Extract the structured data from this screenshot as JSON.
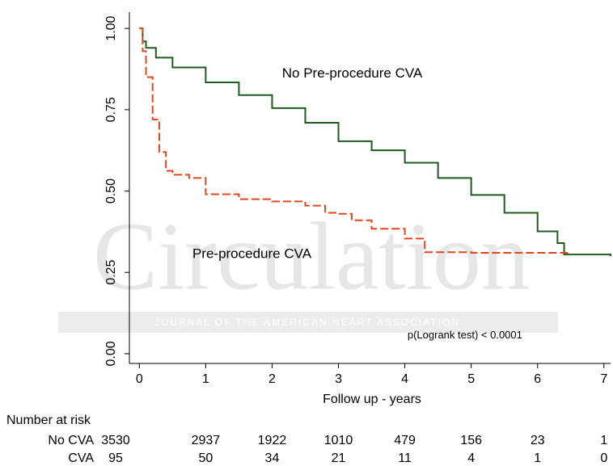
{
  "chart_data": {
    "type": "line",
    "step": "post",
    "watermark": "Circulation",
    "watermark_subtitle": "JOURNAL OF THE AMERICAN HEART ASSOCIATION",
    "xlabel": "Follow up - years",
    "xlim": [
      -0.15,
      7.1
    ],
    "ylim": [
      -0.03,
      1.05
    ],
    "xticks": [
      0,
      1,
      2,
      3,
      4,
      5,
      6,
      7
    ],
    "yticks": [
      {
        "value": 0,
        "label": "0.00"
      },
      {
        "value": 0.25,
        "label": "0.25"
      },
      {
        "value": 0.5,
        "label": "0.50"
      },
      {
        "value": 0.75,
        "label": "0.75"
      },
      {
        "value": 1,
        "label": "1.00"
      }
    ],
    "series": [
      {
        "name": "No Pre-procedure CVA",
        "color": "#1f5a1f",
        "dash": false,
        "x": [
          0,
          0.05,
          0.1,
          0.25,
          0.5,
          1,
          1.5,
          2,
          2.5,
          3,
          3.5,
          4,
          4.5,
          5,
          5.5,
          6,
          6.25,
          6.3,
          6.4,
          7.1
        ],
        "values": [
          1.0,
          0.96,
          0.94,
          0.91,
          0.88,
          0.834,
          0.795,
          0.755,
          0.71,
          0.653,
          0.625,
          0.587,
          0.54,
          0.488,
          0.433,
          0.376,
          0.376,
          0.34,
          0.305,
          0.3
        ]
      },
      {
        "name": "Pre-procedure CVA",
        "color": "#e0461e",
        "dash": true,
        "x": [
          0,
          0.05,
          0.1,
          0.2,
          0.3,
          0.4,
          0.5,
          0.75,
          1,
          1.5,
          2,
          2.5,
          2.8,
          3,
          3.2,
          3.5,
          4,
          4.3,
          5,
          6.3,
          6.5
        ],
        "values": [
          1.0,
          0.93,
          0.85,
          0.72,
          0.62,
          0.562,
          0.55,
          0.54,
          0.49,
          0.475,
          0.468,
          0.455,
          0.433,
          0.43,
          0.41,
          0.384,
          0.354,
          0.312,
          0.31,
          0.31,
          0.31
        ]
      }
    ],
    "annotations": [
      {
        "text": "No Pre-procedure CVA",
        "x": 2.15,
        "y": 0.86
      },
      {
        "text": "Pre-procedure CVA",
        "x": 0.8,
        "y": 0.305
      },
      {
        "text": "p(Logrank test) < 0.0001",
        "x": 4.04,
        "y": 0.055
      }
    ],
    "risk_table": {
      "title": "Number at risk",
      "rows": [
        {
          "name": "No CVA",
          "values": [
            3530,
            2937,
            1922,
            1010,
            479,
            156,
            23,
            1
          ]
        },
        {
          "name": "CVA",
          "values": [
            95,
            50,
            34,
            21,
            11,
            4,
            1,
            0
          ]
        }
      ]
    }
  }
}
